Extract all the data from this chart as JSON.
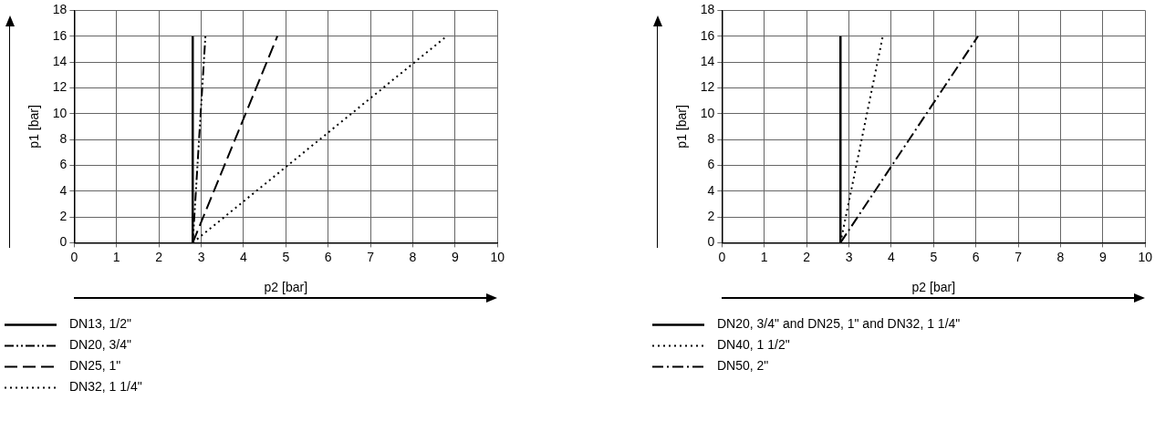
{
  "chart_data": [
    {
      "type": "line",
      "xlabel": "p2 [bar]",
      "ylabel": "p1 [bar]",
      "xlim": [
        0,
        10
      ],
      "xticks": [
        0,
        1,
        2,
        3,
        4,
        5,
        6,
        7,
        8,
        9,
        10
      ],
      "ylim": [
        0,
        18
      ],
      "yticks": [
        0,
        2,
        4,
        6,
        8,
        10,
        12,
        14,
        16,
        18
      ],
      "grid": true,
      "legend": "bottom left",
      "marker": "none",
      "series": [
        {
          "name": "DN13, 1/2\"",
          "color": "#000000",
          "line_style": "solid",
          "x": [
            2.8,
            2.8
          ],
          "values": [
            0,
            16
          ]
        },
        {
          "name": "DN20, 3/4\"",
          "color": "#000000",
          "line_style": "dashdotdot",
          "x": [
            2.8,
            3.1
          ],
          "values": [
            0,
            16
          ]
        },
        {
          "name": "DN25, 1\"",
          "color": "#000000",
          "line_style": "dashed",
          "x": [
            2.8,
            4.8
          ],
          "values": [
            0,
            16
          ]
        },
        {
          "name": "DN32, 1 1/4\"",
          "color": "#000000",
          "line_style": "dotted",
          "x": [
            2.8,
            8.8
          ],
          "values": [
            0,
            16
          ]
        }
      ]
    },
    {
      "type": "line",
      "xlabel": "p2 [bar]",
      "ylabel": "p1 [bar]",
      "xlim": [
        0,
        10
      ],
      "xticks": [
        0,
        1,
        2,
        3,
        4,
        5,
        6,
        7,
        8,
        9,
        10
      ],
      "ylim": [
        0,
        18
      ],
      "yticks": [
        0,
        2,
        4,
        6,
        8,
        10,
        12,
        14,
        16,
        18
      ],
      "grid": true,
      "legend": "bottom left",
      "marker": "none",
      "series": [
        {
          "name": "DN20, 3/4\" and DN25, 1\" and DN32, 1 1/4\"",
          "color": "#000000",
          "line_style": "solid",
          "x": [
            2.8,
            2.8
          ],
          "values": [
            0,
            16
          ]
        },
        {
          "name": "DN40, 1 1/2\"",
          "color": "#000000",
          "line_style": "dotted",
          "x": [
            2.8,
            3.8
          ],
          "values": [
            0,
            16
          ]
        },
        {
          "name": "DN50, 2\"",
          "color": "#000000",
          "line_style": "dashdot",
          "x": [
            2.8,
            6.05
          ],
          "values": [
            0,
            16
          ]
        }
      ]
    }
  ]
}
